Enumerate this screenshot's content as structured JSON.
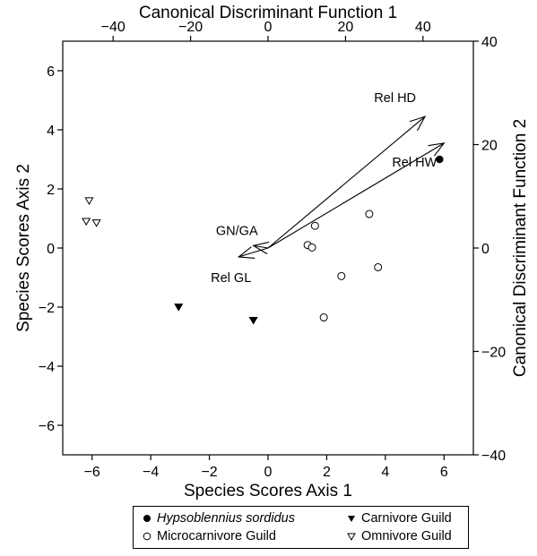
{
  "chart_data": {
    "type": "scatter",
    "xlabel": "Species Scores Axis 1",
    "ylabel": "Species Scores Axis 2",
    "top_label": "Canonical Discriminant Function 1",
    "right_label": "Canonical Discriminant Function 2",
    "xlim": [
      -7,
      7
    ],
    "ylim": [
      -7,
      7
    ],
    "top_lim": [
      -53,
      53
    ],
    "right_lim": [
      -40,
      40
    ],
    "x_ticks": [
      -6,
      -4,
      -2,
      0,
      2,
      4,
      6
    ],
    "y_ticks": [
      -6,
      -4,
      -2,
      0,
      2,
      4,
      6
    ],
    "top_ticks": [
      -40,
      -20,
      0,
      20,
      40
    ],
    "right_ticks": [
      -40,
      -20,
      0,
      20,
      40
    ],
    "series": [
      {
        "name": "Hypsoblennius sordidus",
        "marker": "filled-circle",
        "points": [
          [
            5.85,
            3.0
          ]
        ]
      },
      {
        "name": "Microcarnivore Guild",
        "marker": "open-circle",
        "points": [
          [
            1.6,
            0.75
          ],
          [
            1.35,
            0.1
          ],
          [
            1.5,
            0.02
          ],
          [
            3.45,
            1.15
          ],
          [
            3.75,
            -0.65
          ],
          [
            2.5,
            -0.95
          ],
          [
            1.9,
            -2.35
          ]
        ]
      },
      {
        "name": "Carnivore Guild",
        "marker": "filled-triangle-down",
        "points": [
          [
            -3.05,
            -2.0
          ],
          [
            -0.5,
            -2.45
          ]
        ]
      },
      {
        "name": "Omnivore Guild",
        "marker": "open-triangle-down",
        "points": [
          [
            -6.1,
            1.6
          ],
          [
            -6.2,
            0.9
          ],
          [
            -5.85,
            0.85
          ]
        ]
      }
    ],
    "vectors": [
      {
        "label": "Rel HD",
        "end": [
          5.35,
          4.45
        ]
      },
      {
        "label": "Rel HW",
        "end": [
          6.0,
          3.55
        ]
      },
      {
        "label": "GN/GA",
        "end": [
          -0.5,
          0.08
        ]
      },
      {
        "label": "Rel GL",
        "end": [
          -1.0,
          -0.3
        ]
      }
    ]
  },
  "legend": {
    "items": [
      "Hypsoblennius sordidus",
      "Microcarnivore Guild",
      "Carnivore Guild",
      "Omnivore Guild"
    ]
  }
}
